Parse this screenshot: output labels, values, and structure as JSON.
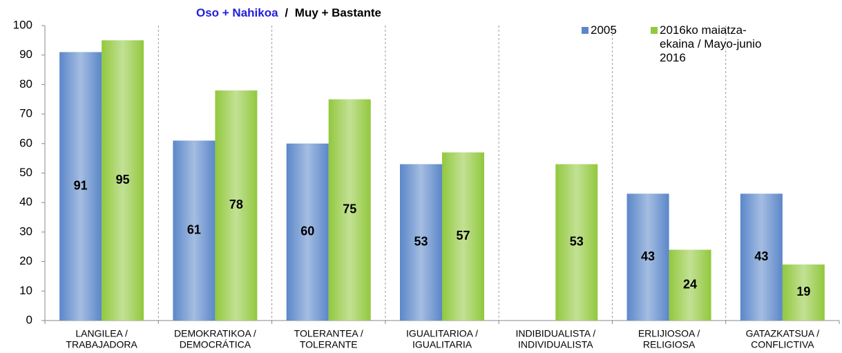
{
  "chart_data": {
    "type": "bar",
    "title": [
      "Oso + Nahikoa",
      "/",
      "Muy + Bastante"
    ],
    "categories": [
      [
        "LANGILEA /",
        "TRABAJADORA"
      ],
      [
        "DEMOKRATIKOA /",
        "DEMOCRÁTICA"
      ],
      [
        "TOLERANTEA /",
        "TOLERANTE"
      ],
      [
        "IGUALITARIOA /",
        "IGUALITARIA"
      ],
      [
        "INDIBIDUALISTA /",
        "INDIVIDUALISTA"
      ],
      [
        "ERLIJIOSOA /",
        "RELIGIOSA"
      ],
      [
        "GATAZKATSUA /",
        "CONFLICTIVA"
      ]
    ],
    "series": [
      {
        "name": "2005",
        "color": "#5b87c9",
        "values": [
          91,
          61,
          60,
          53,
          null,
          43,
          43
        ]
      },
      {
        "name": "2016ko maiatza-ekaina / Mayo-junio 2016",
        "color": "#92c83e",
        "values": [
          95,
          78,
          75,
          57,
          53,
          24,
          19
        ]
      }
    ],
    "ylim": [
      0,
      100
    ],
    "yticks": [
      0,
      10,
      20,
      30,
      40,
      50,
      60,
      70,
      80,
      90,
      100
    ],
    "legend": "upper right"
  }
}
